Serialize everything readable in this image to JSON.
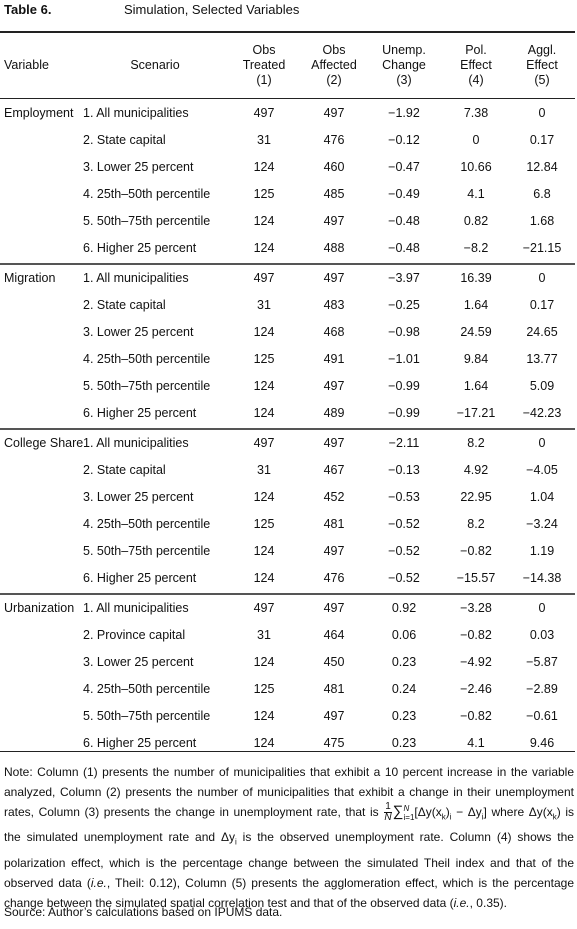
{
  "caption": {
    "number": "Table 6.",
    "title": "Simulation, Selected Variables"
  },
  "headers": {
    "variable": "Variable",
    "scenario": "Scenario",
    "obs_treated": [
      "Obs",
      "Treated",
      "(1)"
    ],
    "obs_affected": [
      "Obs",
      "Affected",
      "(2)"
    ],
    "unemp_change": [
      "Unemp.",
      "Change",
      "(3)"
    ],
    "pol_effect": [
      "Pol.",
      "Effect",
      "(4)"
    ],
    "aggl_effect": [
      "Aggl.",
      "Effect",
      "(5)"
    ]
  },
  "groups": [
    {
      "variable": "Employment",
      "rows": [
        {
          "scenario": "1. All municipalities",
          "treated": "497",
          "affected": "497",
          "unemp": "−1.92",
          "pol": "7.38",
          "aggl": "0"
        },
        {
          "scenario": "2. State capital",
          "treated": "31",
          "affected": "476",
          "unemp": "−0.12",
          "pol": "0",
          "aggl": "0.17"
        },
        {
          "scenario": "3. Lower 25 percent",
          "treated": "124",
          "affected": "460",
          "unemp": "−0.47",
          "pol": "10.66",
          "aggl": "12.84"
        },
        {
          "scenario": "4. 25th–50th percentile",
          "treated": "125",
          "affected": "485",
          "unemp": "−0.49",
          "pol": "4.1",
          "aggl": "6.8"
        },
        {
          "scenario": "5. 50th–75th percentile",
          "treated": "124",
          "affected": "497",
          "unemp": "−0.48",
          "pol": "0.82",
          "aggl": "1.68"
        },
        {
          "scenario": "6. Higher 25 percent",
          "treated": "124",
          "affected": "488",
          "unemp": "−0.48",
          "pol": "−8.2",
          "aggl": "−21.15"
        }
      ]
    },
    {
      "variable": "Migration",
      "rows": [
        {
          "scenario": "1. All municipalities",
          "treated": "497",
          "affected": "497",
          "unemp": "−3.97",
          "pol": "16.39",
          "aggl": "0"
        },
        {
          "scenario": "2. State capital",
          "treated": "31",
          "affected": "483",
          "unemp": "−0.25",
          "pol": "1.64",
          "aggl": "0.17"
        },
        {
          "scenario": "3. Lower 25 percent",
          "treated": "124",
          "affected": "468",
          "unemp": "−0.98",
          "pol": "24.59",
          "aggl": "24.65"
        },
        {
          "scenario": "4. 25th–50th percentile",
          "treated": "125",
          "affected": "491",
          "unemp": "−1.01",
          "pol": "9.84",
          "aggl": "13.77"
        },
        {
          "scenario": "5. 50th–75th percentile",
          "treated": "124",
          "affected": "497",
          "unemp": "−0.99",
          "pol": "1.64",
          "aggl": "5.09"
        },
        {
          "scenario": "6. Higher 25 percent",
          "treated": "124",
          "affected": "489",
          "unemp": "−0.99",
          "pol": "−17.21",
          "aggl": "−42.23"
        }
      ]
    },
    {
      "variable": "College Share",
      "rows": [
        {
          "scenario": "1. All municipalities",
          "treated": "497",
          "affected": "497",
          "unemp": "−2.11",
          "pol": "8.2",
          "aggl": "0"
        },
        {
          "scenario": "2. State capital",
          "treated": "31",
          "affected": "467",
          "unemp": "−0.13",
          "pol": "4.92",
          "aggl": "−4.05"
        },
        {
          "scenario": "3. Lower 25 percent",
          "treated": "124",
          "affected": "452",
          "unemp": "−0.53",
          "pol": "22.95",
          "aggl": "1.04"
        },
        {
          "scenario": "4. 25th–50th percentile",
          "treated": "125",
          "affected": "481",
          "unemp": "−0.52",
          "pol": "8.2",
          "aggl": "−3.24"
        },
        {
          "scenario": "5. 50th–75th percentile",
          "treated": "124",
          "affected": "497",
          "unemp": "−0.52",
          "pol": "−0.82",
          "aggl": "1.19"
        },
        {
          "scenario": "6. Higher 25 percent",
          "treated": "124",
          "affected": "476",
          "unemp": "−0.52",
          "pol": "−15.57",
          "aggl": "−14.38"
        }
      ]
    },
    {
      "variable": "Urbanization",
      "rows": [
        {
          "scenario": "1. All municipalities",
          "treated": "497",
          "affected": "497",
          "unemp": "0.92",
          "pol": "−3.28",
          "aggl": "0"
        },
        {
          "scenario": "2. Province capital",
          "treated": "31",
          "affected": "464",
          "unemp": "0.06",
          "pol": "−0.82",
          "aggl": "0.03"
        },
        {
          "scenario": "3. Lower 25 percent",
          "treated": "124",
          "affected": "450",
          "unemp": "0.23",
          "pol": "−4.92",
          "aggl": "−5.87"
        },
        {
          "scenario": "4. 25th–50th percentile",
          "treated": "125",
          "affected": "481",
          "unemp": "0.24",
          "pol": "−2.46",
          "aggl": "−2.89"
        },
        {
          "scenario": "5. 50th–75th percentile",
          "treated": "124",
          "affected": "497",
          "unemp": "0.23",
          "pol": "−0.82",
          "aggl": "−0.61"
        },
        {
          "scenario": "6. Higher 25 percent",
          "treated": "124",
          "affected": "475",
          "unemp": "0.23",
          "pol": "4.1",
          "aggl": "9.46"
        }
      ]
    }
  ],
  "note": {
    "p1": "Note: Column (1) presents the number of municipalities that exhibit a 10 percent increase in the variable analyzed, Column (2) presents the number of municipalities that exhibit a change in their unemployment rates, Column (3) presents the change in unemployment rate, that is",
    "formula_num": "1",
    "formula_den": "N",
    "formula_sum": "∑",
    "formula_sup": "N",
    "formula_sub": "i=1",
    "formula_body": "[Δy(x",
    "formula_k": "k",
    "formula_tail": ")",
    "formula_i": "i",
    "formula_minus": " − Δy",
    "formula_i2": "i",
    "formula_close": "]",
    "where": "where",
    "p2a": "Δy(x",
    "p2k": "k",
    "p2b": ")",
    "p2c": "is the simulated unemployment rate and",
    "p2d": "Δy",
    "p2e": "i",
    "p2f": "is the observed unemployment rate. Column (4) shows the polarization effect, which is the percentage change between the simulated Theil index and that of the observed data (",
    "ie1": "i.e.",
    "p2g": ", Theil: 0.12), Column (5) presents the agglomeration effect, which is the percentage change between the simulated spatial correlation test and that of the observed data (",
    "ie2": "i.e.",
    "p2h": ", 0.35)."
  },
  "source": "Source: Author’s calculations based on IPUMS data."
}
